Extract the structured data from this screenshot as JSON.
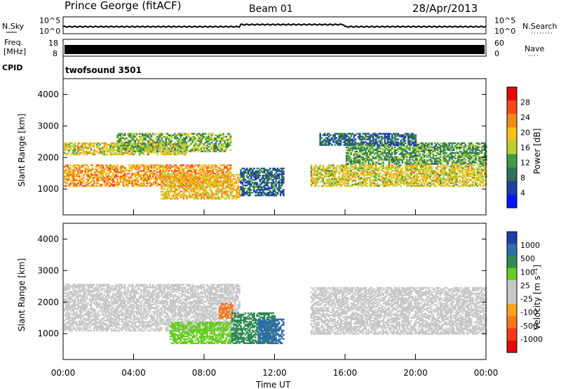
{
  "header": {
    "station": "Prince George (fitACF)",
    "beam": "Beam 01",
    "date": "28/Apr/2013"
  },
  "top_panels": {
    "nsky_label": "N.Sky",
    "nsky_ticks": [
      "10^5",
      "10^0"
    ],
    "nsearch_label": "N.Search",
    "nsearch_ticks": [
      "10^5",
      "10^0"
    ],
    "freq_label": "Freq.",
    "freq_unit": "[MHz]",
    "freq_ticks": [
      "18",
      "8"
    ],
    "nave_label": "Nave",
    "nave_ticks": [
      "60",
      "0"
    ],
    "cpid_label": "CPID",
    "cpid_value": "twofsound 3501"
  },
  "colors": {
    "power": [
      "#0018ff",
      "#1f3fa8",
      "#2f6f55",
      "#3f9a4a",
      "#b6d232",
      "#f5c21b",
      "#f58a1b",
      "#f54a1b",
      "#e40a0a"
    ],
    "velocity": [
      "#e40a0a",
      "#f53a1b",
      "#f5781b",
      "#f5a41b",
      "#c8c8c8",
      "#c8c8c8",
      "#66cc22",
      "#2f8a55",
      "#2f6fa8",
      "#1f3fa8"
    ]
  },
  "chart_data": [
    {
      "type": "heatmap",
      "name": "power",
      "ylabel": "Slant Range [km]",
      "ylim": [
        180,
        4500
      ],
      "yticks": [
        "1000",
        "2000",
        "3000",
        "4000"
      ],
      "colorbar_label": "Power [dB]",
      "colorbar_ticks": [
        "28",
        "24",
        "20",
        "16",
        "12",
        "8",
        "4"
      ],
      "clim": [
        0,
        32
      ],
      "blobs": [
        {
          "t0": 0.0,
          "t1": 9.5,
          "r0": 1100,
          "r1": 1800,
          "power": 22
        },
        {
          "t0": 0.0,
          "t1": 7.0,
          "r0": 2100,
          "r1": 2500,
          "power": 18
        },
        {
          "t0": 3.0,
          "t1": 9.5,
          "r0": 2200,
          "r1": 2800,
          "power": 14
        },
        {
          "t0": 5.5,
          "t1": 10.0,
          "r0": 700,
          "r1": 1500,
          "power": 20
        },
        {
          "t0": 10.0,
          "t1": 12.5,
          "r0": 800,
          "r1": 1700,
          "power": 8
        },
        {
          "t0": 14.0,
          "t1": 24.0,
          "r0": 1100,
          "r1": 1800,
          "power": 18
        },
        {
          "t0": 16.0,
          "t1": 24.0,
          "r0": 1800,
          "r1": 2500,
          "power": 12
        },
        {
          "t0": 14.5,
          "t1": 20.0,
          "r0": 2400,
          "r1": 2800,
          "power": 8
        }
      ]
    },
    {
      "type": "heatmap",
      "name": "velocity",
      "xlabel": "Time UT",
      "ylabel": "Slant Range [km]",
      "ylim": [
        180,
        4500
      ],
      "yticks": [
        "1000",
        "2000",
        "3000",
        "4000"
      ],
      "xticks": [
        "00:00",
        "04:00",
        "08:00",
        "12:00",
        "16:00",
        "20:00",
        "00:00"
      ],
      "xlim": [
        0,
        24
      ],
      "colorbar_label": "Velocity [m s⁻¹]",
      "colorbar_ticks": [
        "1000",
        "500",
        "100",
        "25",
        "-25",
        "-100",
        "-500",
        "-1000"
      ],
      "blobs": [
        {
          "t0": 0.0,
          "t1": 10.0,
          "r0": 1100,
          "r1": 2600,
          "velocity": 0
        },
        {
          "t0": 6.0,
          "t1": 9.5,
          "r0": 700,
          "r1": 1400,
          "velocity": 80
        },
        {
          "t0": 8.8,
          "t1": 9.6,
          "r0": 1500,
          "r1": 2000,
          "velocity": -120
        },
        {
          "t0": 9.5,
          "t1": 12.0,
          "r0": 700,
          "r1": 1700,
          "velocity": 200
        },
        {
          "t0": 11.0,
          "t1": 12.5,
          "r0": 700,
          "r1": 1500,
          "velocity": 600
        },
        {
          "t0": 14.0,
          "t1": 24.0,
          "r0": 1000,
          "r1": 2500,
          "velocity": 0
        }
      ]
    }
  ]
}
